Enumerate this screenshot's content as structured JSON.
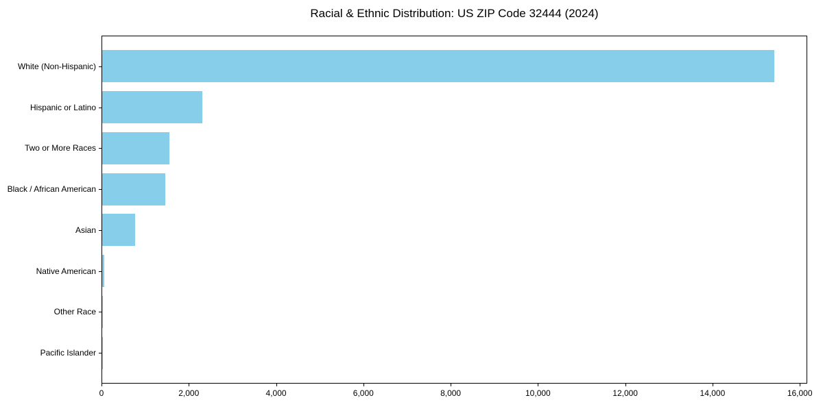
{
  "chart_data": {
    "type": "bar",
    "orientation": "horizontal",
    "title": "Racial & Ethnic Distribution: US ZIP Code 32444 (2024)",
    "xlabel": "",
    "ylabel": "",
    "categories": [
      "White (Non-Hispanic)",
      "Hispanic or Latino",
      "Two or More Races",
      "Black / African American",
      "Asian",
      "Native American",
      "Other Race",
      "Pacific Islander"
    ],
    "values": [
      15400,
      2290,
      1540,
      1450,
      760,
      40,
      10,
      5
    ],
    "xlim": [
      0,
      16170
    ],
    "xticks": [
      0,
      2000,
      4000,
      6000,
      8000,
      10000,
      12000,
      14000,
      16000
    ],
    "xtick_labels": [
      "0",
      "2,000",
      "4,000",
      "6,000",
      "8,000",
      "10,000",
      "12,000",
      "14,000",
      "16,000"
    ],
    "bar_color": "#87CEEB",
    "axis_color": "#000000",
    "text_color": "#000000",
    "background_color": "#FFFFFF",
    "grid": false,
    "legend": null
  }
}
